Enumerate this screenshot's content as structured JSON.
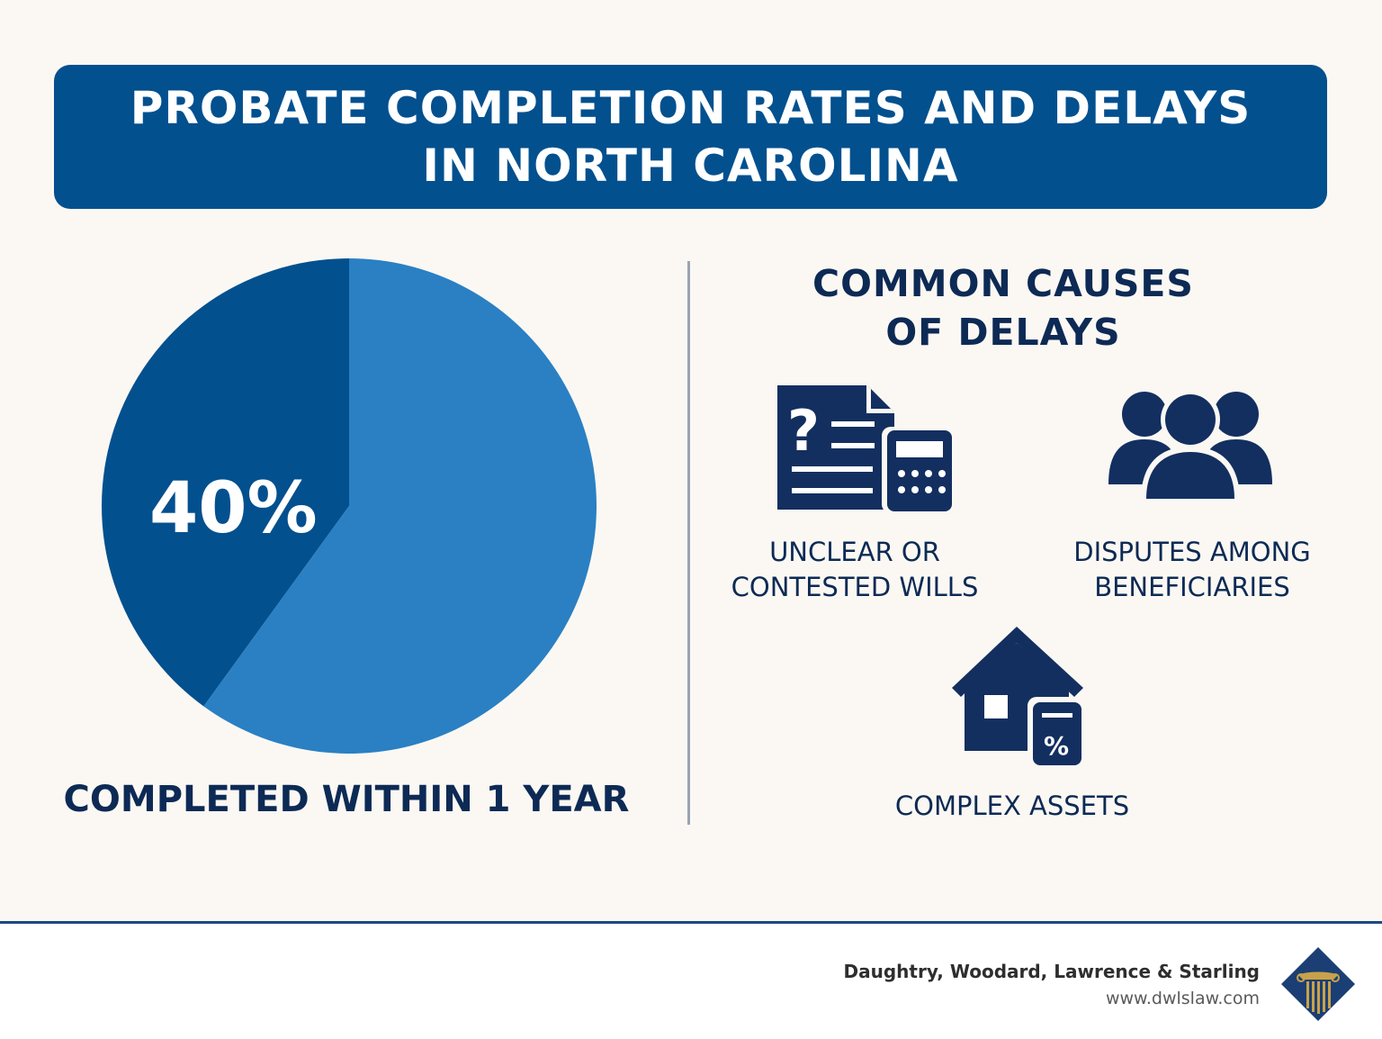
{
  "header": {
    "title_line1": "PROBATE COMPLETION RATES AND DELAYS",
    "title_line2": "IN NORTH CAROLINA"
  },
  "chart_data": {
    "type": "pie",
    "slices": [
      {
        "label": "Completed within 1 year",
        "value": 40,
        "color": "#03508f"
      },
      {
        "value": 60,
        "color": "#2a80c3"
      }
    ],
    "data_label": "40%",
    "caption": "COMPLETED WITHIN 1 YEAR"
  },
  "causes": {
    "heading_line1": "COMMON CAUSES",
    "heading_line2": "OF DELAYS",
    "items": [
      {
        "icon": "document-question-calculator-icon",
        "line1": "UNCLEAR OR",
        "line2": "CONTESTED WILLS"
      },
      {
        "icon": "people-group-icon",
        "line1": "DISPUTES AMONG",
        "line2": "BENEFICIARIES"
      },
      {
        "icon": "house-calculator-icon",
        "line1": "COMPLEX ASSETS",
        "line2": ""
      }
    ]
  },
  "footer": {
    "firm_name": "Daughtry, Woodard, Lawrence & Starling",
    "url": "www.dwlslaw.com"
  },
  "colors": {
    "primary": "#03508f",
    "light_blue": "#2a80c3",
    "navy": "#0d2a55",
    "icon_navy": "#132f60",
    "background": "#fbf8f3",
    "gold": "#c9a14a"
  }
}
